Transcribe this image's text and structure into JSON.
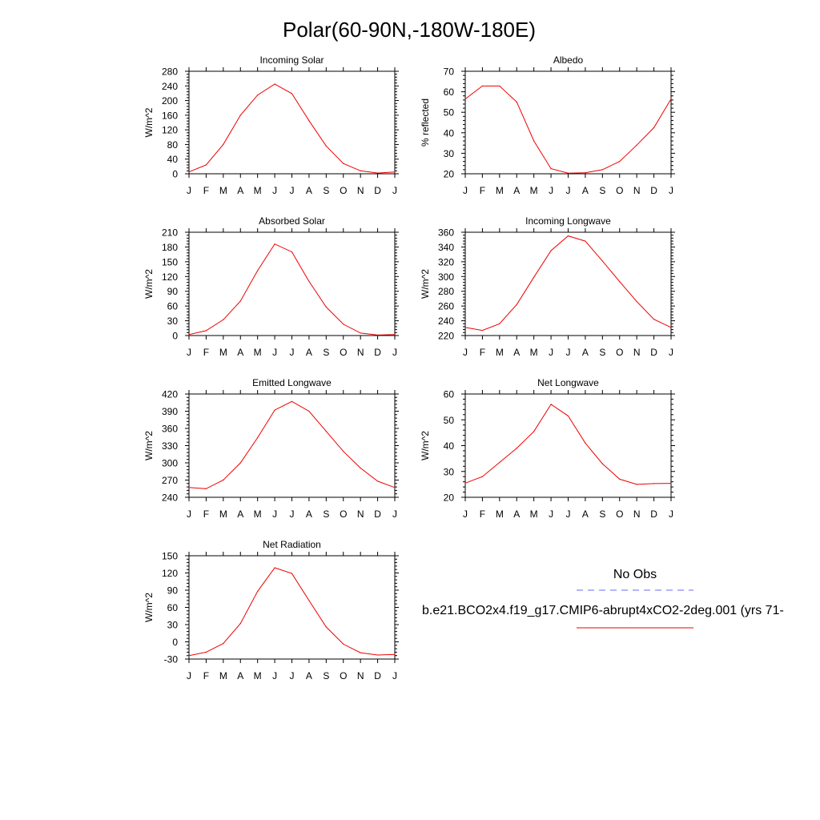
{
  "figure": {
    "title": "Polar(60-90N,-180W-180E)",
    "legend": {
      "obs_label": "No Obs",
      "model_label": "b.e21.BCO2x4.f19_g17.CMIP6-abrupt4xCO2-2deg.001 (yrs 71-",
      "obs_color": "#6a6af0",
      "model_color": "#ee0000"
    }
  },
  "chart_data": [
    {
      "type": "line",
      "title": "Incoming Solar",
      "xlabel": "",
      "ylabel": "W/m^2",
      "categories": [
        "J",
        "F",
        "M",
        "A",
        "M",
        "J",
        "J",
        "A",
        "S",
        "O",
        "N",
        "D",
        "J"
      ],
      "ylim": [
        0,
        280
      ],
      "yticks": [
        0,
        40,
        80,
        120,
        160,
        200,
        240,
        280
      ],
      "series": [
        {
          "color": "#ee0000",
          "values": [
            5,
            24,
            80,
            160,
            215,
            245,
            219,
            145,
            76,
            28,
            8,
            2,
            5
          ]
        }
      ]
    },
    {
      "type": "line",
      "title": "Albedo",
      "xlabel": "",
      "ylabel": "% reflected",
      "categories": [
        "J",
        "F",
        "M",
        "A",
        "M",
        "J",
        "J",
        "A",
        "S",
        "O",
        "N",
        "D",
        "J"
      ],
      "ylim": [
        20,
        70
      ],
      "yticks": [
        20,
        30,
        40,
        50,
        60,
        70
      ],
      "series": [
        {
          "color": "#ee0000",
          "values": [
            56.5,
            62.8,
            62.8,
            55,
            36,
            22.5,
            20.3,
            20.5,
            22,
            26,
            34,
            42.5,
            56.5
          ]
        }
      ]
    },
    {
      "type": "line",
      "title": "Absorbed Solar",
      "xlabel": "",
      "ylabel": "W/m^2",
      "categories": [
        "J",
        "F",
        "M",
        "A",
        "M",
        "J",
        "J",
        "A",
        "S",
        "O",
        "N",
        "D",
        "J"
      ],
      "ylim": [
        0,
        210
      ],
      "yticks": [
        0,
        30,
        60,
        90,
        120,
        150,
        180,
        210
      ],
      "series": [
        {
          "color": "#ee0000",
          "values": [
            2,
            10,
            32,
            70,
            132,
            186,
            170,
            110,
            58,
            23,
            5,
            1,
            2
          ]
        }
      ]
    },
    {
      "type": "line",
      "title": "Incoming Longwave",
      "xlabel": "",
      "ylabel": "W/m^2",
      "categories": [
        "J",
        "F",
        "M",
        "A",
        "M",
        "J",
        "J",
        "A",
        "S",
        "O",
        "N",
        "D",
        "J"
      ],
      "ylim": [
        220,
        360
      ],
      "yticks": [
        220,
        240,
        260,
        280,
        300,
        320,
        340,
        360
      ],
      "series": [
        {
          "color": "#ee0000",
          "values": [
            231,
            227,
            236,
            262,
            299,
            335,
            355,
            348,
            321,
            293,
            266,
            242,
            231
          ]
        }
      ]
    },
    {
      "type": "line",
      "title": "Emitted Longwave",
      "xlabel": "",
      "ylabel": "W/m^2",
      "categories": [
        "J",
        "F",
        "M",
        "A",
        "M",
        "J",
        "J",
        "A",
        "S",
        "O",
        "N",
        "D",
        "J"
      ],
      "ylim": [
        240,
        420
      ],
      "yticks": [
        240,
        270,
        300,
        330,
        360,
        390,
        420
      ],
      "series": [
        {
          "color": "#ee0000",
          "values": [
            257,
            255,
            270,
            300,
            344,
            392,
            407,
            390,
            355,
            320,
            291,
            268,
            257
          ]
        }
      ]
    },
    {
      "type": "line",
      "title": "Net Longwave",
      "xlabel": "",
      "ylabel": "W/m^2",
      "categories": [
        "J",
        "F",
        "M",
        "A",
        "M",
        "J",
        "J",
        "A",
        "S",
        "O",
        "N",
        "D",
        "J"
      ],
      "ylim": [
        20,
        60
      ],
      "yticks": [
        20,
        30,
        40,
        50,
        60
      ],
      "series": [
        {
          "color": "#ee0000",
          "values": [
            25.5,
            28,
            33.5,
            39,
            45.5,
            56,
            51.5,
            41,
            33,
            27,
            25,
            25.3,
            25.4
          ]
        }
      ]
    },
    {
      "type": "line",
      "title": "Net Radiation",
      "xlabel": "",
      "ylabel": "W/m^2",
      "categories": [
        "J",
        "F",
        "M",
        "A",
        "M",
        "J",
        "J",
        "A",
        "S",
        "O",
        "N",
        "D",
        "J"
      ],
      "ylim": [
        -30,
        150
      ],
      "yticks": [
        -30,
        0,
        30,
        60,
        90,
        120,
        150
      ],
      "series": [
        {
          "color": "#ee0000",
          "values": [
            -24,
            -18,
            -3,
            32,
            88,
            129,
            119,
            72,
            26,
            -4,
            -19,
            -23,
            -22
          ]
        }
      ]
    }
  ]
}
